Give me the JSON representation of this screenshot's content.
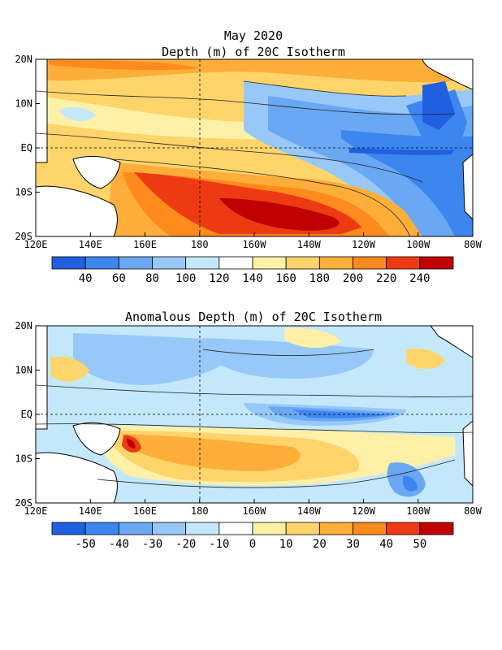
{
  "chart_data": [
    {
      "type": "heatmap",
      "title": "May 2020",
      "subtitle": "Depth (m) of 20C Isotherm",
      "x_ticks": [
        "120E",
        "140E",
        "160E",
        "180",
        "160W",
        "140W",
        "120W",
        "100W",
        "80W"
      ],
      "x_range": [
        120,
        280
      ],
      "y_ticks": [
        "20N",
        "10N",
        "EQ",
        "10S",
        "20S"
      ],
      "y_range": [
        -20,
        20
      ],
      "dashed_grid": true,
      "colorbar": {
        "labels": [
          "40",
          "60",
          "80",
          "100",
          "120",
          "140",
          "160",
          "180",
          "200",
          "220",
          "240"
        ],
        "colors": [
          "#1f5fe0",
          "#3c86f0",
          "#6aa8f4",
          "#98c8f8",
          "#c4e8fb",
          "#ffffff",
          "#fff0a8",
          "#ffd46a",
          "#ffae3a",
          "#ff8a1e",
          "#ee3a12",
          "#c00000"
        ]
      }
    },
    {
      "type": "heatmap",
      "title": "Anomalous Depth (m) of 20C Isotherm",
      "x_ticks": [
        "120E",
        "140E",
        "160E",
        "180",
        "160W",
        "140W",
        "120W",
        "100W",
        "80W"
      ],
      "x_range": [
        120,
        280
      ],
      "y_ticks": [
        "20N",
        "10N",
        "EQ",
        "10S",
        "20S"
      ],
      "y_range": [
        -20,
        20
      ],
      "dashed_grid": true,
      "colorbar": {
        "labels": [
          "-50",
          "-40",
          "-30",
          "-20",
          "-10",
          "0",
          "10",
          "20",
          "30",
          "40",
          "50"
        ],
        "colors": [
          "#1f5fe0",
          "#3c86f0",
          "#6aa8f4",
          "#98c8f8",
          "#c4e8fb",
          "#ffffff",
          "#fff0a8",
          "#ffd46a",
          "#ffae3a",
          "#ff8a1e",
          "#ee3a12",
          "#c00000"
        ]
      }
    }
  ]
}
